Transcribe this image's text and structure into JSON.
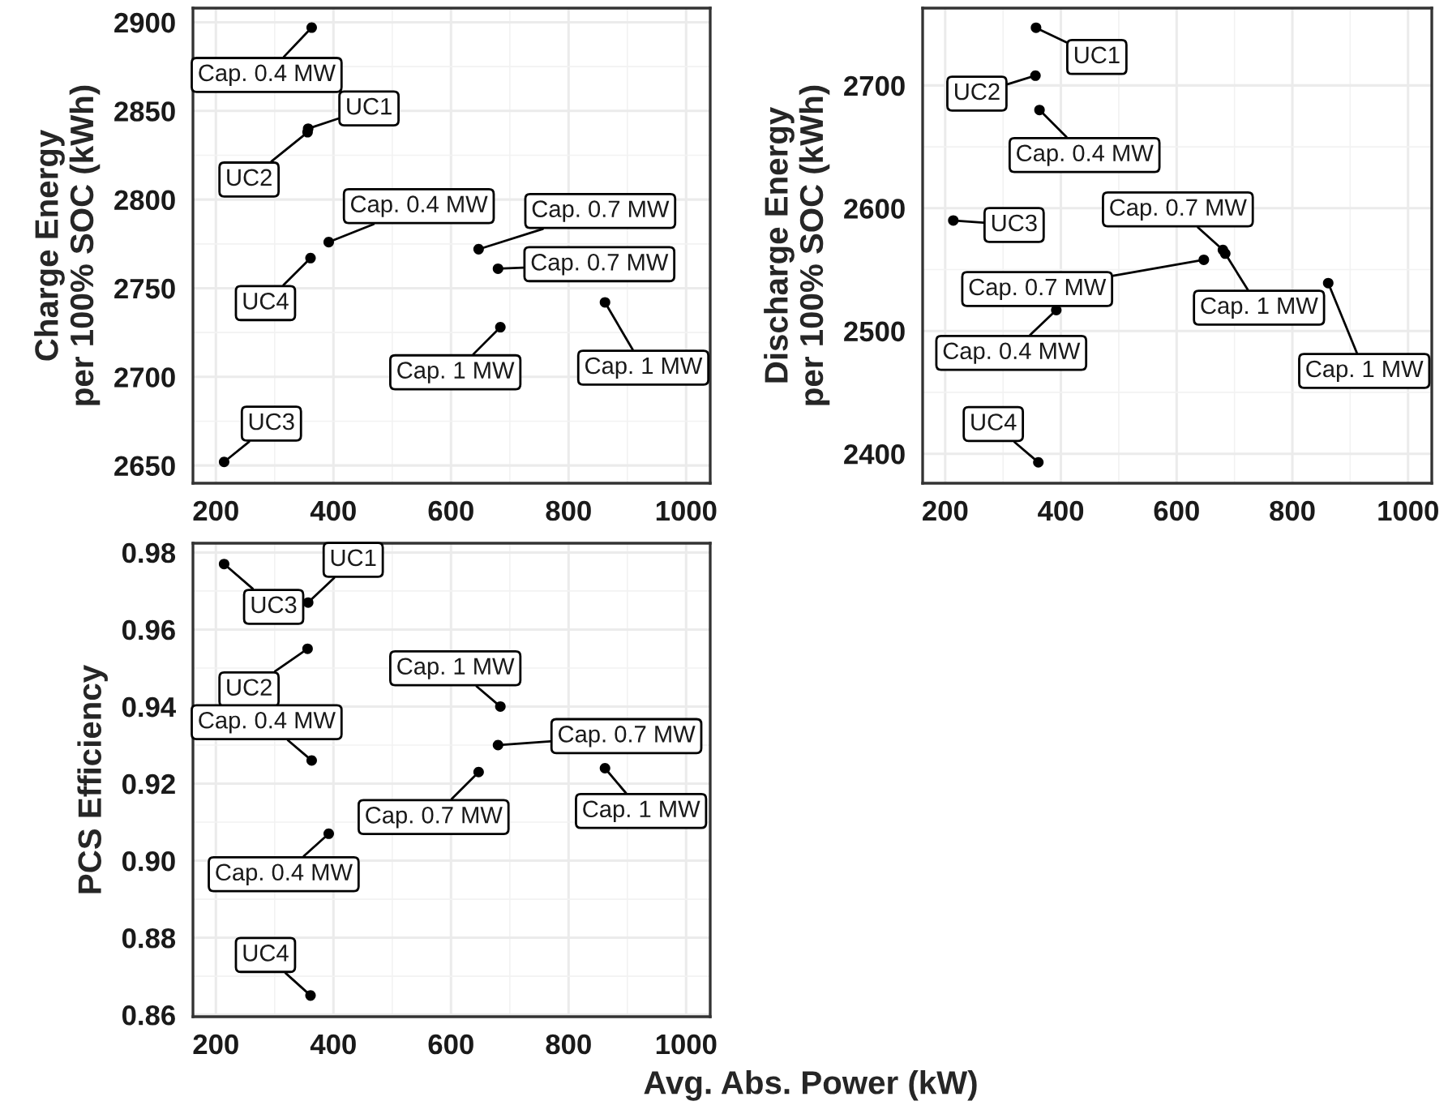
{
  "chart_data": [
    {
      "type": "scatter",
      "ylabel": "Charge Energy\nper 100% SOC (kWh)",
      "xlim": [
        161,
        1041
      ],
      "xticks": [
        200,
        400,
        600,
        800,
        1000
      ],
      "ylim": [
        2640,
        2908
      ],
      "yticks": [
        2650,
        2700,
        2750,
        2800,
        2850,
        2900
      ],
      "grid": true,
      "marker": "circle",
      "series": [
        {
          "color": "#000000",
          "x": [
            214,
            357,
            356,
            361,
            363,
            392,
            647,
            680,
            684,
            862
          ],
          "values": [
            2652,
            2840,
            2838,
            2767,
            2897,
            2776,
            2772,
            2761,
            2728,
            2742
          ]
        }
      ],
      "annotations": [
        {
          "text": "UC3",
          "x": 214,
          "y": 2652
        },
        {
          "text": "UC1",
          "x": 357,
          "y": 2840
        },
        {
          "text": "UC2",
          "x": 356,
          "y": 2838
        },
        {
          "text": "UC4",
          "x": 361,
          "y": 2767
        },
        {
          "text": "Cap. 0.4 MW",
          "x": 363,
          "y": 2897
        },
        {
          "text": "Cap. 0.4 MW",
          "x": 392,
          "y": 2776
        },
        {
          "text": "Cap. 0.7 MW",
          "x": 647,
          "y": 2772
        },
        {
          "text": "Cap. 0.7 MW",
          "x": 680,
          "y": 2761
        },
        {
          "text": "Cap. 1 MW",
          "x": 684,
          "y": 2728
        },
        {
          "text": "Cap. 1 MW",
          "x": 862,
          "y": 2742
        }
      ]
    },
    {
      "type": "scatter",
      "ylabel": "Discharge Energy\nper 100% SOC (kWh)",
      "xlim": [
        161,
        1041
      ],
      "xticks": [
        200,
        400,
        600,
        800,
        1000
      ],
      "ylim": [
        2376,
        2763
      ],
      "yticks": [
        2400,
        2500,
        2600,
        2700
      ],
      "grid": true,
      "marker": "circle",
      "series": [
        {
          "color": "#000000",
          "x": [
            214,
            357,
            356,
            361,
            363,
            392,
            647,
            680,
            684,
            862
          ],
          "values": [
            2590,
            2747,
            2708,
            2393,
            2680,
            2517,
            2558,
            2566,
            2563,
            2539
          ]
        }
      ],
      "annotations": [
        {
          "text": "UC3",
          "x": 214,
          "y": 2590
        },
        {
          "text": "UC1",
          "x": 357,
          "y": 2747
        },
        {
          "text": "UC2",
          "x": 356,
          "y": 2708
        },
        {
          "text": "UC4",
          "x": 361,
          "y": 2393
        },
        {
          "text": "Cap. 0.4 MW",
          "x": 363,
          "y": 2680
        },
        {
          "text": "Cap. 0.4 MW",
          "x": 392,
          "y": 2517
        },
        {
          "text": "Cap. 0.7 MW",
          "x": 647,
          "y": 2558
        },
        {
          "text": "Cap. 0.7 MW",
          "x": 680,
          "y": 2566
        },
        {
          "text": "Cap. 1 MW",
          "x": 684,
          "y": 2563
        },
        {
          "text": "Cap. 1 MW",
          "x": 862,
          "y": 2539
        }
      ]
    },
    {
      "type": "scatter",
      "xlabel": "Avg. Abs. Power (kW)",
      "ylabel": "PCS Efficiency",
      "xlim": [
        161,
        1041
      ],
      "xticks": [
        200,
        400,
        600,
        800,
        1000
      ],
      "ylim": [
        0.8595,
        0.9824
      ],
      "yticks": [
        0.86,
        0.88,
        {
          "value": 0.9,
          "label": "0.90"
        },
        0.92,
        0.94,
        0.96,
        0.98
      ],
      "grid": true,
      "marker": "circle",
      "series": [
        {
          "color": "#000000",
          "x": [
            214,
            357,
            356,
            361,
            363,
            392,
            647,
            680,
            684,
            862
          ],
          "values": [
            0.977,
            0.967,
            0.955,
            0.865,
            0.926,
            0.907,
            0.923,
            0.93,
            0.94,
            0.924
          ]
        }
      ],
      "annotations": [
        {
          "text": "UC3",
          "x": 214,
          "y": 0.977
        },
        {
          "text": "UC1",
          "x": 357,
          "y": 0.967
        },
        {
          "text": "UC2",
          "x": 356,
          "y": 0.955
        },
        {
          "text": "UC4",
          "x": 361,
          "y": 0.865
        },
        {
          "text": "Cap. 0.4 MW",
          "x": 363,
          "y": 0.926
        },
        {
          "text": "Cap. 0.4 MW",
          "x": 392,
          "y": 0.907
        },
        {
          "text": "Cap. 0.7 MW",
          "x": 647,
          "y": 0.923
        },
        {
          "text": "Cap. 0.7 MW",
          "x": 680,
          "y": 0.93
        },
        {
          "text": "Cap. 1 MW",
          "x": 684,
          "y": 0.94
        },
        {
          "text": "Cap. 1 MW",
          "x": 862,
          "y": 0.924
        }
      ]
    }
  ]
}
